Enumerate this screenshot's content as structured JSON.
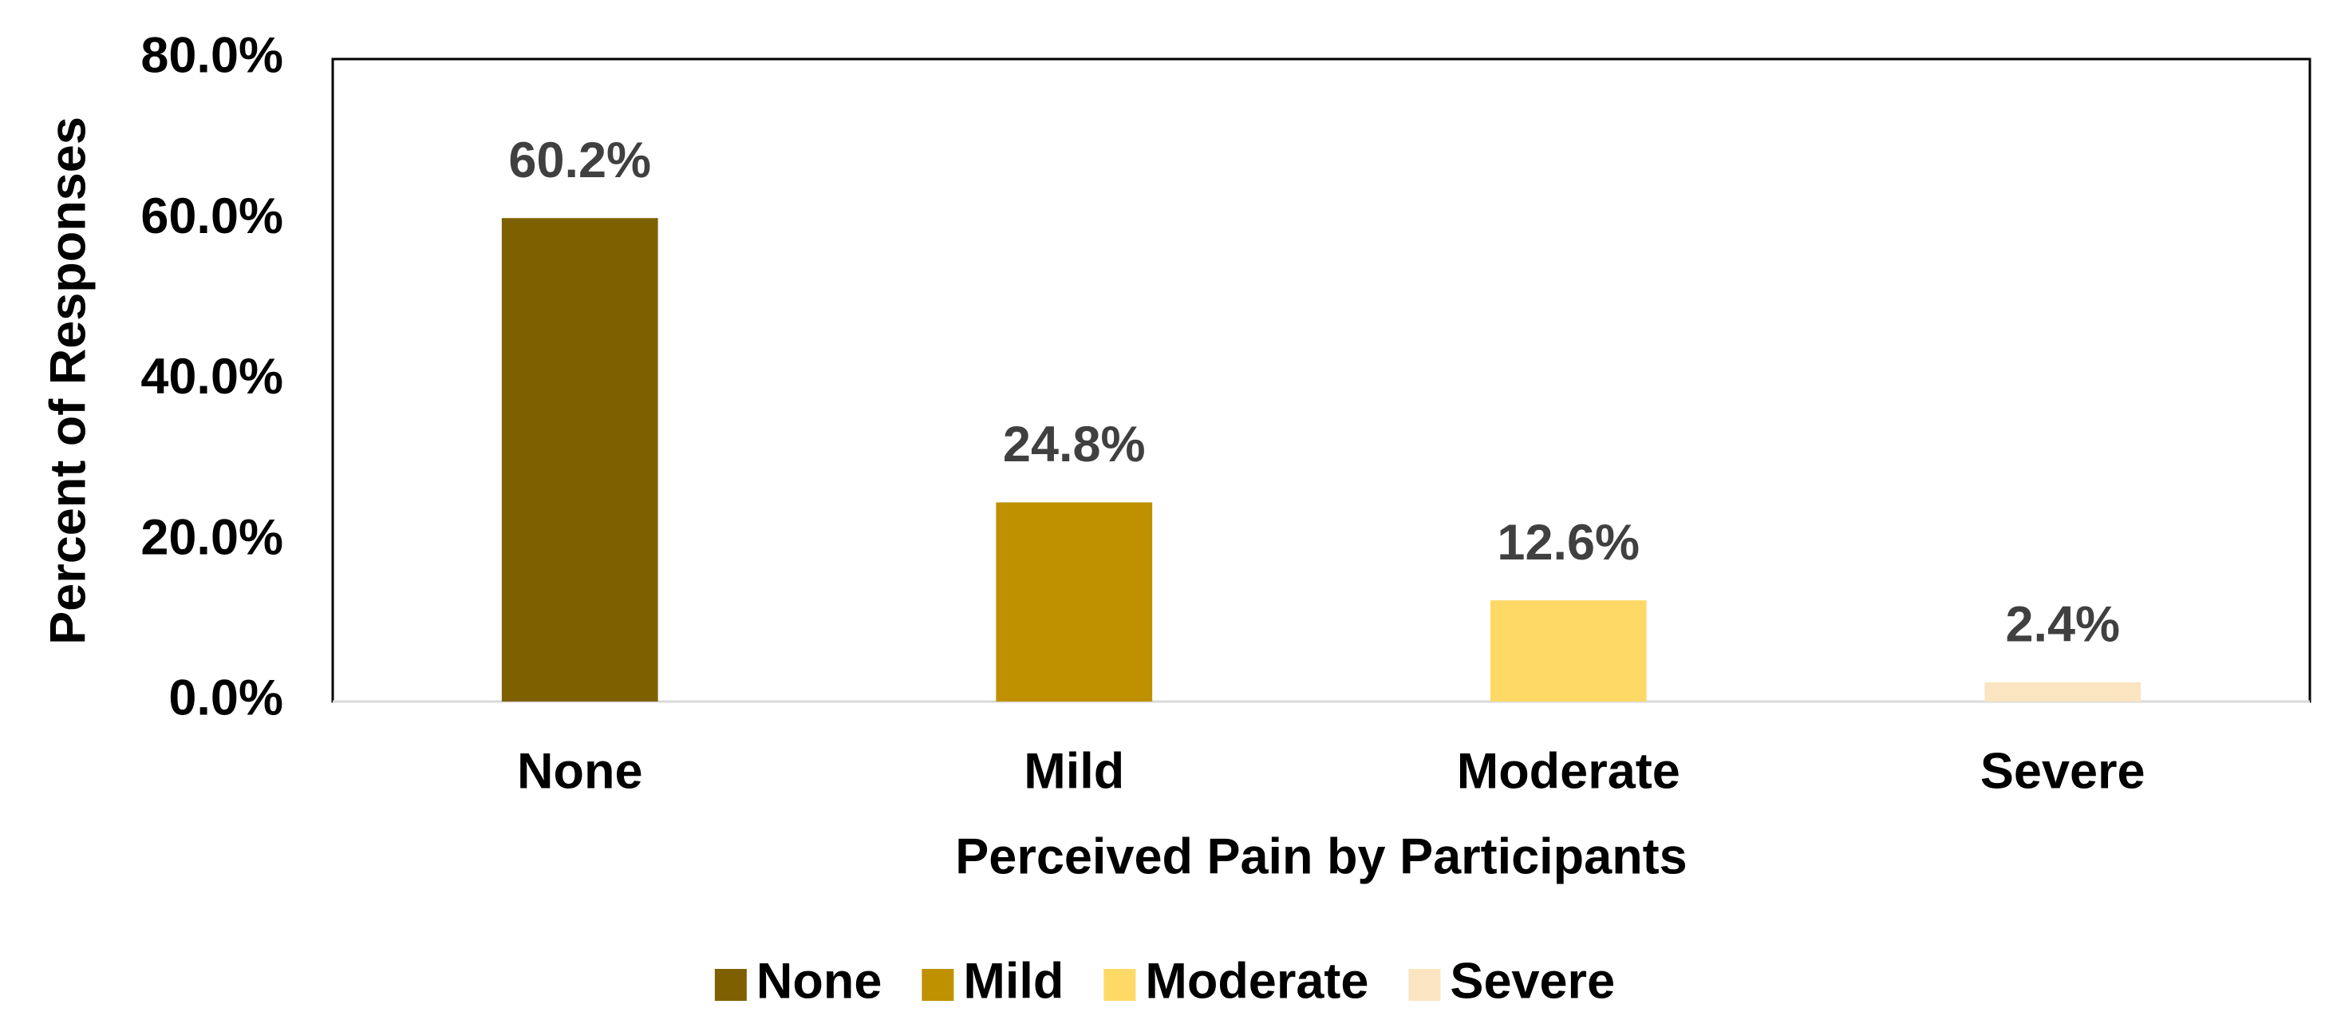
{
  "chart_data": {
    "type": "bar",
    "categories": [
      "None",
      "Mild",
      "Moderate",
      "Severe"
    ],
    "values": [
      60.2,
      24.8,
      12.6,
      2.4
    ],
    "value_labels": [
      "60.2%",
      "24.8%",
      "12.6%",
      "2.4%"
    ],
    "colors": [
      "#7f6000",
      "#bf9000",
      "#ffd966",
      "#fbe5c0"
    ],
    "x_label": "Perceived Pain by Participants",
    "y_label": "Percent of Responses",
    "ylim": [
      0,
      80
    ],
    "yticks": [
      {
        "value": 0,
        "label": "0.0%"
      },
      {
        "value": 20,
        "label": "20.0%"
      },
      {
        "value": 40,
        "label": "40.0%"
      },
      {
        "value": 60,
        "label": "60.0%"
      },
      {
        "value": 80,
        "label": "80.0%"
      }
    ],
    "grid": false,
    "legend": "bottom"
  }
}
